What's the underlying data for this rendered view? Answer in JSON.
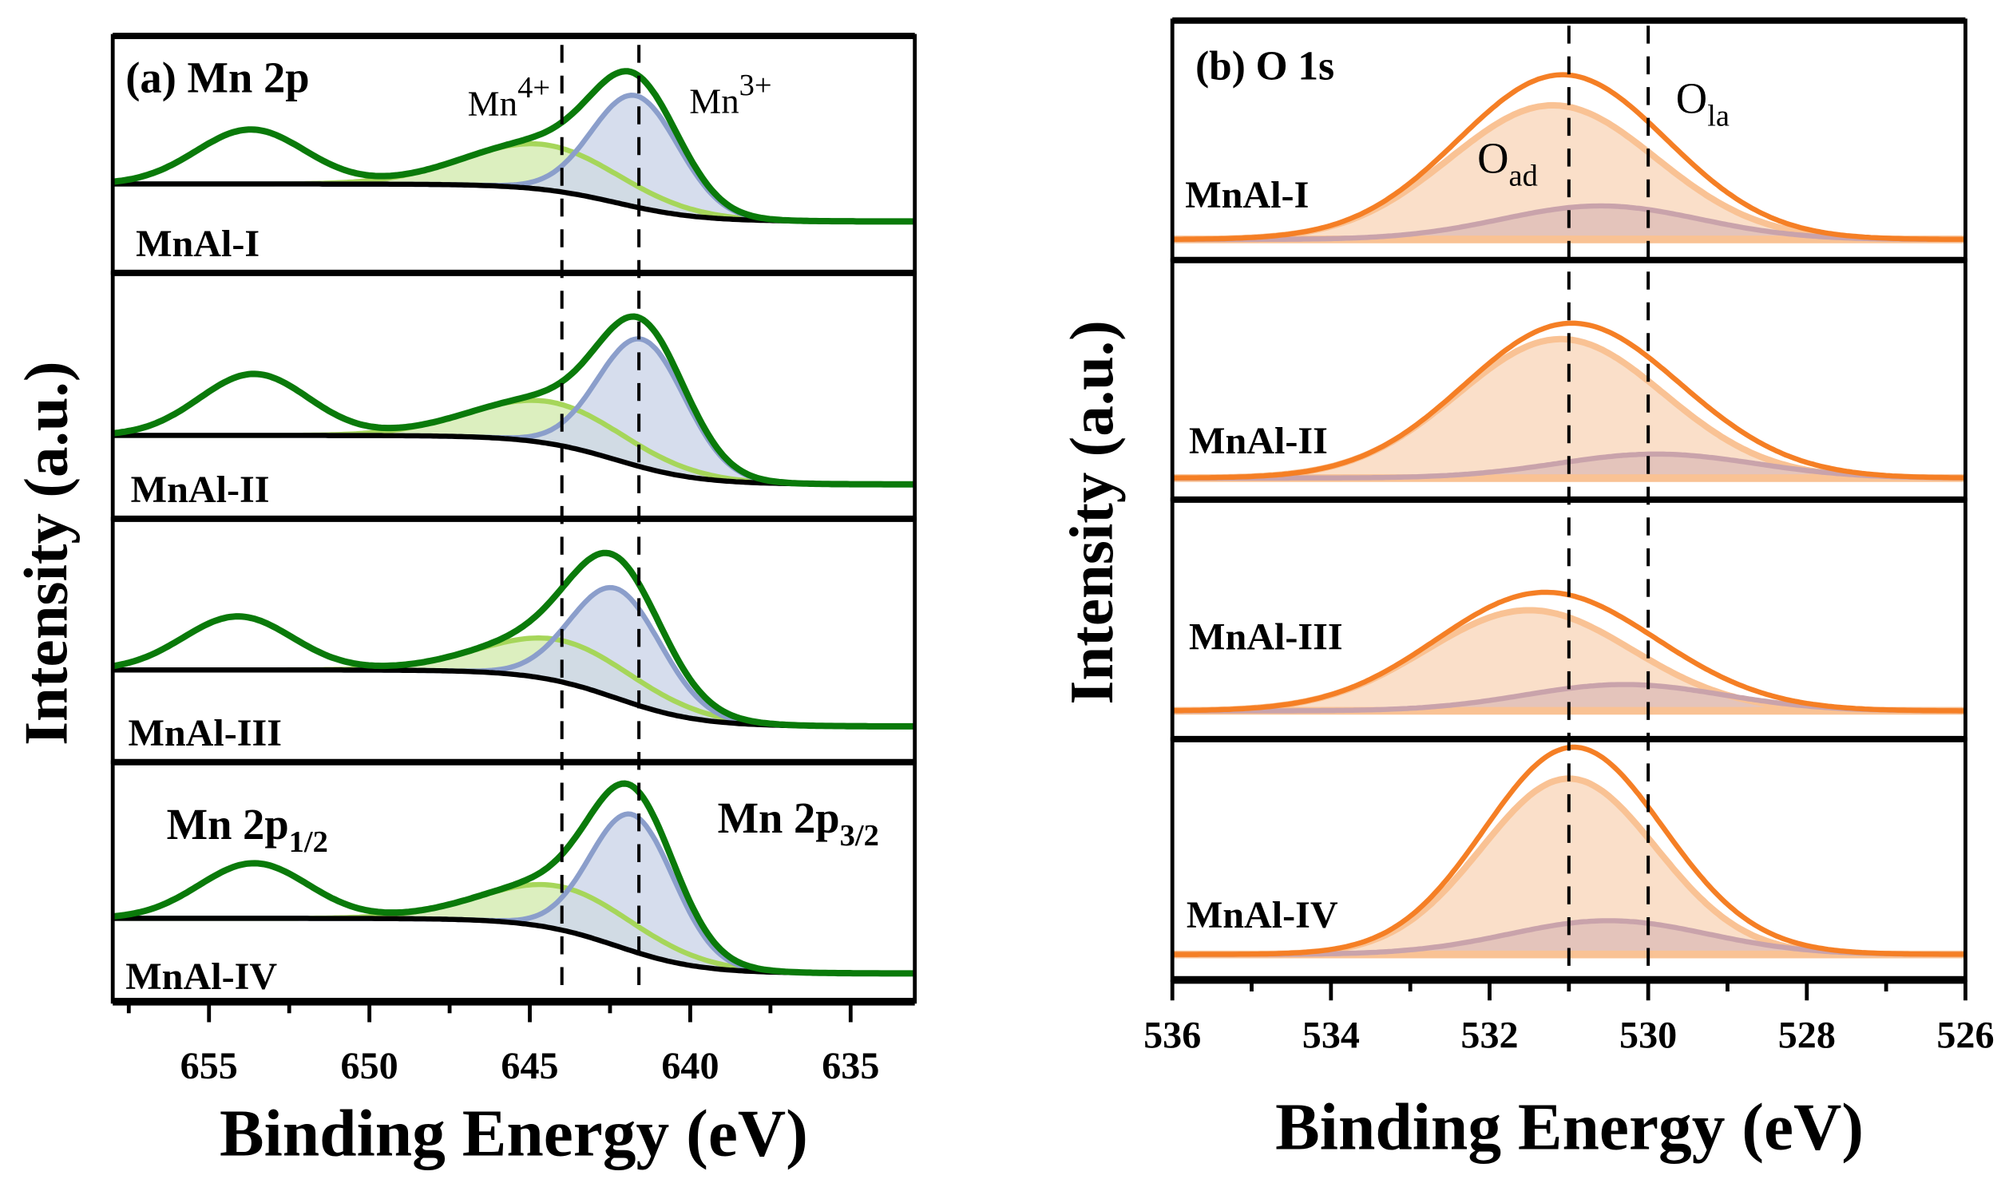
{
  "chart_data": [
    {
      "type": "line",
      "title": "(a) Mn 2p",
      "xlabel": "Binding Energy (eV)",
      "ylabel": "Intensity (a.u.)",
      "xlim": [
        658,
        633
      ],
      "xticks": [
        "655",
        "650",
        "645",
        "640",
        "635"
      ],
      "xtick_values": [
        655,
        650,
        645,
        640,
        635
      ],
      "reference_lines_eV": [
        644.0,
        641.6
      ],
      "annotations": {
        "mn4": "Mn",
        "mn4_sup": "4+",
        "mn3": "Mn",
        "mn3_sup": "3+",
        "p12": "Mn 2p",
        "p12_sub": "1/2",
        "p32": "Mn 2p",
        "p32_sub": "3/2"
      },
      "colors": {
        "envelope": "#0a7a0a",
        "mn4": "#a6d65a",
        "mn4_fill": "#d6ecb4",
        "mn3": "#8b9ecb",
        "mn3_fill": "#cfd7ea",
        "background": "#000000"
      },
      "series": [
        {
          "name": "MnAl-I",
          "bg_high": 37.5,
          "bg_low": 21.7,
          "peaks": {
            "p12": [
              653.7,
              23,
              1.7
            ],
            "mn4": [
              644.6,
              19,
              2.4
            ],
            "mn3": [
              641.7,
              47,
              1.35
            ]
          }
        },
        {
          "name": "MnAl-II",
          "bg_high": 33.9,
          "bg_low": 14.0,
          "peaks": {
            "p12": [
              653.6,
              25,
              1.7
            ],
            "mn4": [
              644.4,
              17,
              2.4
            ],
            "mn3": [
              641.5,
              52,
              1.35
            ]
          }
        },
        {
          "name": "MnAl-III",
          "bg_high": 37.9,
          "bg_low": 14.7,
          "peaks": {
            "p12": [
              654.1,
              22,
              1.7
            ],
            "mn4": [
              644.0,
              17,
              2.4
            ],
            "mn3": [
              642.3,
              45,
              1.4
            ]
          }
        },
        {
          "name": "MnAl-IV",
          "bg_high": 34.8,
          "bg_low": 11.8,
          "peaks": {
            "p12": [
              653.6,
              23,
              1.7
            ],
            "mn4": [
              644.0,
              18,
              2.4
            ],
            "mn3": [
              641.8,
              57,
              1.3
            ]
          }
        }
      ]
    },
    {
      "type": "line",
      "title": "(b) O 1s",
      "xlabel": "Binding Energy (eV)",
      "ylabel": "Intensity (a.u.)",
      "xlim": [
        536,
        526
      ],
      "xticks": [
        "536",
        "534",
        "532",
        "530",
        "528",
        "526"
      ],
      "xtick_values": [
        536,
        534,
        532,
        530,
        528,
        526
      ],
      "reference_lines_eV": [
        531.0,
        530.0
      ],
      "annotations": {
        "oad": "O",
        "oad_sub": "ad",
        "ola": "O",
        "ola_sub": "la"
      },
      "colors": {
        "envelope": "#f57f25",
        "oad": "#f9c294",
        "oad_fill": "#fadcc3",
        "ola": "#c9a3ab"
      },
      "series": [
        {
          "name": "MnAl-I",
          "baseline": 8.6,
          "peaks": {
            "oad": [
              531.2,
              56,
              1.3
            ],
            "ola": [
              530.6,
              14,
              1.25
            ]
          }
        },
        {
          "name": "MnAl-II",
          "baseline": 9.0,
          "peaks": {
            "oad": [
              531.1,
              58,
              1.3
            ],
            "ola": [
              529.9,
              10,
              1.25
            ]
          }
        },
        {
          "name": "MnAl-III",
          "baseline": 11.8,
          "peaks": {
            "oad": [
              531.5,
              42,
              1.3
            ],
            "ola": [
              530.3,
              11,
              1.25
            ]
          }
        },
        {
          "name": "MnAl-IV",
          "baseline": 10.6,
          "peaks": {
            "oad": [
              531.0,
              73,
              1.1
            ],
            "ola": [
              530.5,
              14,
              1.25
            ]
          }
        }
      ]
    }
  ]
}
